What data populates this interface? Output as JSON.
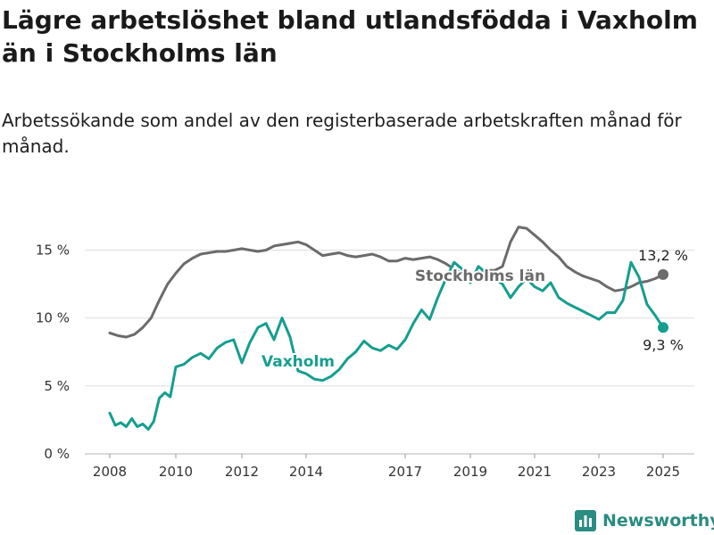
{
  "header": {
    "title": "Lägre arbetslöshet bland utlandsfödda i Vaxholm än i Stockholms län",
    "subtitle": "Arbetssökande som andel av den registerbaserade arbetskraften månad för månad."
  },
  "brand": {
    "name": "Newsworthy",
    "icon": "bar-chart-logo-icon",
    "color": "#2a8c82"
  },
  "chart_data": {
    "type": "line",
    "title": "Lägre arbetslöshet bland utlandsfödda i Vaxholm än i Stockholms län",
    "subtitle": "Arbetssökande som andel av den registerbaserade arbetskraften månad för månad.",
    "xlabel": "",
    "ylabel": "",
    "x_ticks": [
      "2008",
      "2010",
      "2012",
      "2014",
      "2017",
      "2019",
      "2021",
      "2023",
      "2025"
    ],
    "y_ticks": [
      0,
      5,
      10,
      15
    ],
    "y_tick_labels": [
      "0 %",
      "5 %",
      "10 %",
      "15 %"
    ],
    "ylim": [
      0,
      17
    ],
    "grid": "horizontal",
    "series": [
      {
        "name": "Stockholms län",
        "color": "#6b6b6b",
        "end_label": "13,2 %",
        "points": [
          [
            "2008-01",
            8.9
          ],
          [
            "2008-04",
            8.7
          ],
          [
            "2008-07",
            8.6
          ],
          [
            "2008-10",
            8.8
          ],
          [
            "2009-01",
            9.3
          ],
          [
            "2009-04",
            10.0
          ],
          [
            "2009-07",
            11.3
          ],
          [
            "2009-10",
            12.5
          ],
          [
            "2010-01",
            13.3
          ],
          [
            "2010-04",
            14.0
          ],
          [
            "2010-07",
            14.4
          ],
          [
            "2010-10",
            14.7
          ],
          [
            "2011-01",
            14.8
          ],
          [
            "2011-04",
            14.9
          ],
          [
            "2011-07",
            14.9
          ],
          [
            "2011-10",
            15.0
          ],
          [
            "2012-01",
            15.1
          ],
          [
            "2012-04",
            15.0
          ],
          [
            "2012-07",
            14.9
          ],
          [
            "2012-10",
            15.0
          ],
          [
            "2013-01",
            15.3
          ],
          [
            "2013-04",
            15.4
          ],
          [
            "2013-07",
            15.5
          ],
          [
            "2013-10",
            15.6
          ],
          [
            "2014-01",
            15.4
          ],
          [
            "2014-04",
            15.0
          ],
          [
            "2014-07",
            14.6
          ],
          [
            "2014-10",
            14.7
          ],
          [
            "2015-01",
            14.8
          ],
          [
            "2015-04",
            14.6
          ],
          [
            "2015-07",
            14.5
          ],
          [
            "2015-10",
            14.6
          ],
          [
            "2016-01",
            14.7
          ],
          [
            "2016-04",
            14.5
          ],
          [
            "2016-07",
            14.2
          ],
          [
            "2016-10",
            14.2
          ],
          [
            "2017-01",
            14.4
          ],
          [
            "2017-04",
            14.3
          ],
          [
            "2017-07",
            14.4
          ],
          [
            "2017-10",
            14.5
          ],
          [
            "2018-01",
            14.3
          ],
          [
            "2018-04",
            14.0
          ],
          [
            "2018-07",
            13.6
          ],
          [
            "2018-10",
            13.3
          ],
          [
            "2019-01",
            13.2
          ],
          [
            "2019-04",
            13.3
          ],
          [
            "2019-07",
            13.5
          ],
          [
            "2019-10",
            13.5
          ],
          [
            "2020-01",
            13.8
          ],
          [
            "2020-04",
            15.6
          ],
          [
            "2020-07",
            16.7
          ],
          [
            "2020-10",
            16.6
          ],
          [
            "2021-01",
            16.1
          ],
          [
            "2021-04",
            15.6
          ],
          [
            "2021-07",
            15.0
          ],
          [
            "2021-10",
            14.5
          ],
          [
            "2022-01",
            13.8
          ],
          [
            "2022-04",
            13.4
          ],
          [
            "2022-07",
            13.1
          ],
          [
            "2022-10",
            12.9
          ],
          [
            "2023-01",
            12.7
          ],
          [
            "2023-04",
            12.3
          ],
          [
            "2023-07",
            12.0
          ],
          [
            "2023-10",
            12.1
          ],
          [
            "2024-01",
            12.3
          ],
          [
            "2024-04",
            12.6
          ],
          [
            "2024-07",
            12.7
          ],
          [
            "2024-10",
            12.9
          ],
          [
            "2025-01",
            13.2
          ]
        ]
      },
      {
        "name": "Vaxholm",
        "color": "#159e8f",
        "end_label": "9,3 %",
        "points": [
          [
            "2008-01",
            3.0
          ],
          [
            "2008-03",
            2.1
          ],
          [
            "2008-05",
            2.3
          ],
          [
            "2008-07",
            2.0
          ],
          [
            "2008-09",
            2.6
          ],
          [
            "2008-11",
            2.0
          ],
          [
            "2009-01",
            2.2
          ],
          [
            "2009-03",
            1.8
          ],
          [
            "2009-05",
            2.4
          ],
          [
            "2009-07",
            4.1
          ],
          [
            "2009-09",
            4.5
          ],
          [
            "2009-11",
            4.2
          ],
          [
            "2010-01",
            6.4
          ],
          [
            "2010-04",
            6.6
          ],
          [
            "2010-07",
            7.1
          ],
          [
            "2010-10",
            7.4
          ],
          [
            "2011-01",
            7.0
          ],
          [
            "2011-04",
            7.8
          ],
          [
            "2011-07",
            8.2
          ],
          [
            "2011-10",
            8.4
          ],
          [
            "2012-01",
            6.7
          ],
          [
            "2012-04",
            8.2
          ],
          [
            "2012-07",
            9.3
          ],
          [
            "2012-10",
            9.6
          ],
          [
            "2013-01",
            8.4
          ],
          [
            "2013-04",
            10.0
          ],
          [
            "2013-07",
            8.6
          ],
          [
            "2013-10",
            6.1
          ],
          [
            "2014-01",
            5.9
          ],
          [
            "2014-04",
            5.5
          ],
          [
            "2014-07",
            5.4
          ],
          [
            "2014-10",
            5.7
          ],
          [
            "2015-01",
            6.2
          ],
          [
            "2015-04",
            7.0
          ],
          [
            "2015-07",
            7.5
          ],
          [
            "2015-10",
            8.3
          ],
          [
            "2016-01",
            7.8
          ],
          [
            "2016-04",
            7.6
          ],
          [
            "2016-07",
            8.0
          ],
          [
            "2016-10",
            7.7
          ],
          [
            "2017-01",
            8.4
          ],
          [
            "2017-04",
            9.6
          ],
          [
            "2017-07",
            10.6
          ],
          [
            "2017-10",
            9.9
          ],
          [
            "2018-01",
            11.5
          ],
          [
            "2018-04",
            12.9
          ],
          [
            "2018-07",
            14.1
          ],
          [
            "2018-10",
            13.6
          ],
          [
            "2019-01",
            12.6
          ],
          [
            "2019-04",
            13.8
          ],
          [
            "2019-07",
            13.3
          ],
          [
            "2019-10",
            12.9
          ],
          [
            "2020-01",
            12.5
          ],
          [
            "2020-04",
            11.5
          ],
          [
            "2020-07",
            12.3
          ],
          [
            "2020-10",
            12.9
          ],
          [
            "2021-01",
            12.3
          ],
          [
            "2021-04",
            12.0
          ],
          [
            "2021-07",
            12.6
          ],
          [
            "2021-10",
            11.5
          ],
          [
            "2022-01",
            11.1
          ],
          [
            "2022-04",
            10.8
          ],
          [
            "2022-07",
            10.5
          ],
          [
            "2022-10",
            10.2
          ],
          [
            "2023-01",
            9.9
          ],
          [
            "2023-04",
            10.4
          ],
          [
            "2023-07",
            10.4
          ],
          [
            "2023-10",
            11.3
          ],
          [
            "2024-01",
            14.1
          ],
          [
            "2024-04",
            13.0
          ],
          [
            "2024-07",
            11.0
          ],
          [
            "2024-10",
            10.2
          ],
          [
            "2025-01",
            9.3
          ]
        ]
      }
    ]
  }
}
